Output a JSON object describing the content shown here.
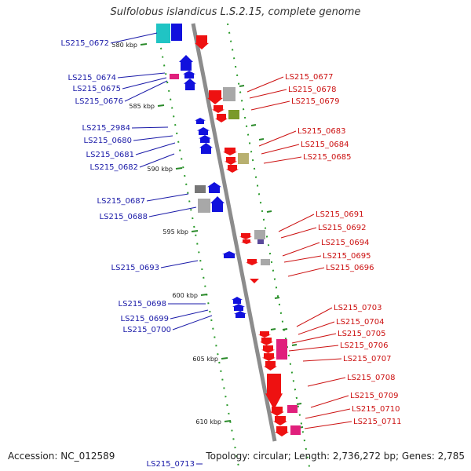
{
  "title": "Sulfolobus islandicus L.S.2.15, complete genome",
  "footer": {
    "accession": "Accession: NC_012589",
    "summary": "Topology: circular; Length: 2,736,272 bp; Genes: 2,785"
  },
  "colors": {
    "forward": "#1111dd",
    "reverse": "#ee1111",
    "magenta": "#e0207c",
    "cyan": "#20c4c4",
    "olive": "#7a9a2a",
    "khaki": "#b8b070",
    "gray": "#a8a8a8",
    "backbone": "#888888",
    "tick": "#2a8a2a",
    "left_label": "#1a1aa8",
    "right_label": "#cc1111"
  },
  "ticks": [
    {
      "label": "580 kbp",
      "kbp": 580
    },
    {
      "label": "585 kbp",
      "kbp": 585
    },
    {
      "label": "590 kbp",
      "kbp": 590
    },
    {
      "label": "595 kbp",
      "kbp": 595
    },
    {
      "label": "600 kbp",
      "kbp": 600
    },
    {
      "label": "605 kbp",
      "kbp": 605
    },
    {
      "label": "610 kbp",
      "kbp": 610
    }
  ],
  "left_labels": [
    "LS215_0672",
    "LS215_0674",
    "LS215_0675",
    "LS215_0676",
    "LS215_2984",
    "LS215_0680",
    "LS215_0681",
    "LS215_0682",
    "LS215_0687",
    "LS215_0688",
    "LS215_0693",
    "LS215_0698",
    "LS215_0699",
    "LS215_0700",
    "LS215_0713"
  ],
  "right_labels": [
    "LS215_0677",
    "LS215_0678",
    "LS215_0679",
    "LS215_0683",
    "LS215_0684",
    "LS215_0685",
    "LS215_0691",
    "LS215_0692",
    "LS215_0694",
    "LS215_0695",
    "LS215_0696",
    "LS215_0703",
    "LS215_0704",
    "LS215_0705",
    "LS215_0706",
    "LS215_0707",
    "LS215_0708",
    "LS215_0709",
    "LS215_0710",
    "LS215_0711"
  ]
}
